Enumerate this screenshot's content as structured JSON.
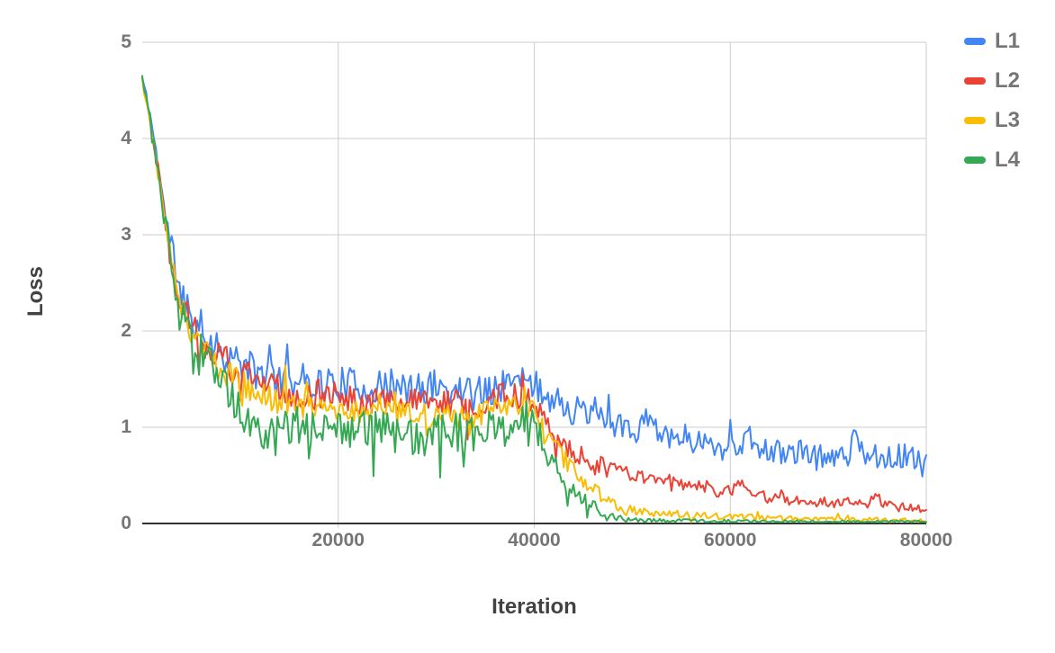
{
  "colors": {
    "background": "#ffffff",
    "gridline": "#cccccc",
    "axis_line": "#333333",
    "tick_label": "#757575",
    "axis_title": "#424242",
    "legend_label": "#757575"
  },
  "chart_data": {
    "type": "line",
    "title": "",
    "xlabel": "Iteration",
    "ylabel": "Loss",
    "xlim": [
      0,
      80000
    ],
    "ylim": [
      0,
      5
    ],
    "x_ticks": [
      20000,
      40000,
      60000,
      80000
    ],
    "x_tick_labels": [
      "20000",
      "40000",
      "60000",
      "80000"
    ],
    "y_ticks": [
      0,
      1,
      2,
      3,
      4,
      5
    ],
    "y_tick_labels": [
      "0",
      "1",
      "2",
      "3",
      "4",
      "5"
    ],
    "grid": true,
    "legend_position": "top-right",
    "sample_step": 200,
    "series": [
      {
        "name": "L1",
        "color": "#4285F4",
        "seed": 11,
        "spike_dir": 1,
        "spike_prob": 0.06,
        "trend": [
          [
            0,
            4.63
          ],
          [
            400,
            4.45
          ],
          [
            800,
            4.25
          ],
          [
            1200,
            4.0
          ],
          [
            1600,
            3.75
          ],
          [
            2000,
            3.45
          ],
          [
            2500,
            3.1
          ],
          [
            3000,
            2.85
          ],
          [
            3500,
            2.6
          ],
          [
            4000,
            2.4
          ],
          [
            5000,
            2.15
          ],
          [
            6000,
            2.0
          ],
          [
            7000,
            1.9
          ],
          [
            8000,
            1.8
          ],
          [
            10000,
            1.65
          ],
          [
            12000,
            1.55
          ],
          [
            14000,
            1.5
          ],
          [
            16000,
            1.48
          ],
          [
            20000,
            1.45
          ],
          [
            24000,
            1.4
          ],
          [
            28000,
            1.38
          ],
          [
            30000,
            1.42
          ],
          [
            32000,
            1.38
          ],
          [
            34000,
            1.35
          ],
          [
            36000,
            1.42
          ],
          [
            38000,
            1.48
          ],
          [
            40000,
            1.42
          ],
          [
            42000,
            1.28
          ],
          [
            44000,
            1.18
          ],
          [
            46000,
            1.1
          ],
          [
            48000,
            1.02
          ],
          [
            50000,
            0.95
          ],
          [
            52000,
            1.0
          ],
          [
            54000,
            0.92
          ],
          [
            56000,
            0.88
          ],
          [
            58000,
            0.82
          ],
          [
            60000,
            0.78
          ],
          [
            62000,
            0.88
          ],
          [
            63000,
            0.8
          ],
          [
            64000,
            0.72
          ],
          [
            66000,
            0.76
          ],
          [
            68000,
            0.7
          ],
          [
            70000,
            0.68
          ],
          [
            72000,
            0.74
          ],
          [
            73000,
            0.9
          ],
          [
            74000,
            0.7
          ],
          [
            76000,
            0.72
          ],
          [
            78000,
            0.68
          ],
          [
            80000,
            0.6
          ]
        ],
        "noise_amp": [
          [
            0,
            0.03
          ],
          [
            1000,
            0.06
          ],
          [
            2000,
            0.1
          ],
          [
            4000,
            0.18
          ],
          [
            8000,
            0.2
          ],
          [
            40000,
            0.17
          ],
          [
            50000,
            0.15
          ],
          [
            60000,
            0.14
          ],
          [
            80000,
            0.14
          ]
        ]
      },
      {
        "name": "L2",
        "color": "#EA4335",
        "seed": 22,
        "spike_dir": 0,
        "spike_prob": 0.05,
        "trend": [
          [
            0,
            4.62
          ],
          [
            400,
            4.42
          ],
          [
            800,
            4.2
          ],
          [
            1200,
            3.95
          ],
          [
            1600,
            3.7
          ],
          [
            2000,
            3.4
          ],
          [
            2500,
            3.05
          ],
          [
            3000,
            2.78
          ],
          [
            3500,
            2.52
          ],
          [
            4000,
            2.32
          ],
          [
            5000,
            2.08
          ],
          [
            6000,
            1.92
          ],
          [
            7000,
            1.82
          ],
          [
            8000,
            1.72
          ],
          [
            10000,
            1.55
          ],
          [
            12000,
            1.45
          ],
          [
            14000,
            1.4
          ],
          [
            16000,
            1.36
          ],
          [
            20000,
            1.32
          ],
          [
            24000,
            1.28
          ],
          [
            28000,
            1.25
          ],
          [
            32000,
            1.25
          ],
          [
            34000,
            1.22
          ],
          [
            36000,
            1.3
          ],
          [
            38000,
            1.35
          ],
          [
            40000,
            1.28
          ],
          [
            41000,
            1.1
          ],
          [
            42000,
            0.95
          ],
          [
            43000,
            0.85
          ],
          [
            44000,
            0.75
          ],
          [
            45000,
            0.68
          ],
          [
            46000,
            0.62
          ],
          [
            47000,
            0.58
          ],
          [
            48000,
            0.55
          ],
          [
            50000,
            0.5
          ],
          [
            52000,
            0.46
          ],
          [
            54000,
            0.42
          ],
          [
            56000,
            0.4
          ],
          [
            58000,
            0.36
          ],
          [
            60000,
            0.32
          ],
          [
            61000,
            0.45
          ],
          [
            62000,
            0.3
          ],
          [
            64000,
            0.27
          ],
          [
            66000,
            0.25
          ],
          [
            68000,
            0.24
          ],
          [
            70000,
            0.22
          ],
          [
            72000,
            0.2
          ],
          [
            74000,
            0.2
          ],
          [
            75000,
            0.28
          ],
          [
            76000,
            0.18
          ],
          [
            78000,
            0.16
          ],
          [
            80000,
            0.14
          ]
        ],
        "noise_amp": [
          [
            0,
            0.03
          ],
          [
            1000,
            0.06
          ],
          [
            2000,
            0.1
          ],
          [
            4000,
            0.16
          ],
          [
            8000,
            0.17
          ],
          [
            40000,
            0.14
          ],
          [
            44000,
            0.12
          ],
          [
            48000,
            0.1
          ],
          [
            56000,
            0.08
          ],
          [
            64000,
            0.06
          ],
          [
            80000,
            0.05
          ]
        ]
      },
      {
        "name": "L3",
        "color": "#FBBC04",
        "seed": 33,
        "spike_dir": 0,
        "spike_prob": 0.05,
        "trend": [
          [
            0,
            4.61
          ],
          [
            400,
            4.4
          ],
          [
            800,
            4.18
          ],
          [
            1200,
            3.92
          ],
          [
            1600,
            3.65
          ],
          [
            2000,
            3.35
          ],
          [
            2500,
            3.0
          ],
          [
            3000,
            2.72
          ],
          [
            3500,
            2.45
          ],
          [
            4000,
            2.25
          ],
          [
            5000,
            2.0
          ],
          [
            6000,
            1.85
          ],
          [
            7000,
            1.72
          ],
          [
            8000,
            1.62
          ],
          [
            10000,
            1.45
          ],
          [
            12000,
            1.32
          ],
          [
            14000,
            1.28
          ],
          [
            16000,
            1.24
          ],
          [
            20000,
            1.18
          ],
          [
            24000,
            1.15
          ],
          [
            28000,
            1.12
          ],
          [
            32000,
            1.12
          ],
          [
            34000,
            1.1
          ],
          [
            36000,
            1.18
          ],
          [
            38000,
            1.22
          ],
          [
            40000,
            1.15
          ],
          [
            41000,
            0.95
          ],
          [
            42000,
            0.8
          ],
          [
            43000,
            0.68
          ],
          [
            44000,
            0.55
          ],
          [
            45000,
            0.45
          ],
          [
            46000,
            0.35
          ],
          [
            47000,
            0.28
          ],
          [
            48000,
            0.2
          ],
          [
            49000,
            0.16
          ],
          [
            50000,
            0.13
          ],
          [
            52000,
            0.11
          ],
          [
            54000,
            0.1
          ],
          [
            56000,
            0.09
          ],
          [
            58000,
            0.08
          ],
          [
            60000,
            0.07
          ],
          [
            64000,
            0.06
          ],
          [
            68000,
            0.05
          ],
          [
            72000,
            0.04
          ],
          [
            76000,
            0.04
          ],
          [
            80000,
            0.03
          ]
        ],
        "noise_amp": [
          [
            0,
            0.03
          ],
          [
            1000,
            0.05
          ],
          [
            2000,
            0.09
          ],
          [
            4000,
            0.14
          ],
          [
            8000,
            0.15
          ],
          [
            40000,
            0.12
          ],
          [
            44000,
            0.1
          ],
          [
            48000,
            0.06
          ],
          [
            52000,
            0.04
          ],
          [
            60000,
            0.03
          ],
          [
            80000,
            0.02
          ]
        ]
      },
      {
        "name": "L4",
        "color": "#34A853",
        "seed": 44,
        "spike_dir": -1,
        "spike_prob": 0.07,
        "trend": [
          [
            0,
            4.63
          ],
          [
            400,
            4.43
          ],
          [
            800,
            4.22
          ],
          [
            1200,
            3.95
          ],
          [
            1600,
            3.68
          ],
          [
            2000,
            3.35
          ],
          [
            2500,
            3.0
          ],
          [
            3000,
            2.7
          ],
          [
            3500,
            2.42
          ],
          [
            4000,
            2.2
          ],
          [
            5000,
            1.95
          ],
          [
            6000,
            1.78
          ],
          [
            7000,
            1.65
          ],
          [
            8000,
            1.55
          ],
          [
            9000,
            1.35
          ],
          [
            10000,
            1.2
          ],
          [
            11000,
            1.0
          ],
          [
            12000,
            0.95
          ],
          [
            14000,
            1.0
          ],
          [
            16000,
            1.02
          ],
          [
            20000,
            1.0
          ],
          [
            24000,
            0.95
          ],
          [
            28000,
            0.92
          ],
          [
            32000,
            0.95
          ],
          [
            34000,
            0.92
          ],
          [
            36000,
            1.0
          ],
          [
            38000,
            1.08
          ],
          [
            39000,
            1.12
          ],
          [
            40000,
            1.05
          ],
          [
            41000,
            0.8
          ],
          [
            42000,
            0.6
          ],
          [
            43000,
            0.45
          ],
          [
            44000,
            0.35
          ],
          [
            45000,
            0.25
          ],
          [
            46000,
            0.18
          ],
          [
            47000,
            0.12
          ],
          [
            48000,
            0.08
          ],
          [
            49000,
            0.05
          ],
          [
            50000,
            0.04
          ],
          [
            52000,
            0.03
          ],
          [
            56000,
            0.03
          ],
          [
            60000,
            0.025
          ],
          [
            70000,
            0.02
          ],
          [
            80000,
            0.02
          ]
        ],
        "noise_amp": [
          [
            0,
            0.03
          ],
          [
            1000,
            0.06
          ],
          [
            2000,
            0.1
          ],
          [
            4000,
            0.18
          ],
          [
            8000,
            0.22
          ],
          [
            38000,
            0.2
          ],
          [
            42000,
            0.12
          ],
          [
            46000,
            0.07
          ],
          [
            48000,
            0.04
          ],
          [
            50000,
            0.02
          ],
          [
            60000,
            0.015
          ],
          [
            80000,
            0.012
          ]
        ]
      }
    ]
  }
}
